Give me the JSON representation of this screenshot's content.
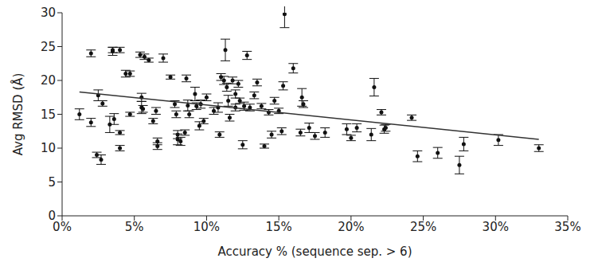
{
  "chart_data": {
    "type": "scatter",
    "x_label": "Accuracy % (sequence sep. > 6)",
    "y_label": "Avg RMSD (Å)",
    "color": "#111111",
    "marker": "circle",
    "x": [
      1.2,
      2.0,
      2.0,
      2.4,
      2.5,
      2.7,
      2.8,
      3.3,
      3.5,
      3.5,
      3.6,
      4.0,
      4.0,
      4.0,
      4.4,
      4.7,
      4.7,
      5.4,
      5.5,
      5.5,
      5.6,
      5.7,
      6.0,
      6.3,
      6.5,
      6.6,
      6.6,
      7.0,
      7.5,
      7.8,
      7.9,
      8.0,
      8.0,
      8.2,
      8.5,
      8.6,
      8.7,
      8.8,
      9.2,
      9.3,
      9.5,
      9.6,
      9.8,
      10.0,
      10.5,
      10.8,
      10.9,
      11.0,
      11.2,
      11.3,
      11.4,
      11.5,
      11.6,
      11.8,
      12.0,
      12.0,
      12.2,
      12.3,
      12.5,
      12.6,
      12.8,
      13.0,
      13.3,
      13.5,
      13.8,
      14.0,
      14.3,
      14.5,
      14.7,
      15.0,
      15.2,
      15.3,
      15.4,
      16.0,
      16.5,
      16.6,
      16.7,
      17.1,
      17.5,
      18.2,
      19.7,
      20.0,
      20.4,
      21.4,
      21.6,
      22.1,
      22.3,
      22.4,
      24.2,
      24.6,
      26.0,
      27.5,
      27.8,
      30.2,
      33.0
    ],
    "values": [
      15.0,
      24.0,
      13.8,
      9.0,
      17.8,
      8.3,
      16.6,
      13.5,
      24.3,
      24.5,
      14.3,
      24.5,
      12.3,
      10.0,
      21.0,
      21.0,
      15.0,
      23.8,
      17.5,
      16.0,
      15.8,
      23.5,
      23.0,
      14.0,
      15.5,
      11.0,
      10.3,
      23.3,
      20.5,
      16.5,
      15.0,
      12.0,
      11.3,
      11.0,
      12.3,
      20.3,
      16.3,
      15.0,
      18.0,
      16.2,
      13.3,
      16.5,
      14.0,
      17.5,
      15.5,
      16.0,
      12.0,
      20.5,
      20.0,
      24.5,
      19.0,
      17.0,
      14.5,
      20.0,
      16.0,
      18.0,
      19.5,
      17.0,
      10.5,
      16.2,
      23.7,
      16.0,
      17.8,
      19.7,
      16.2,
      10.3,
      15.3,
      12.0,
      17.0,
      15.5,
      12.5,
      19.2,
      29.8,
      21.8,
      12.3,
      17.5,
      16.5,
      13.0,
      11.8,
      12.3,
      12.8,
      11.5,
      13.0,
      12.0,
      19.0,
      15.3,
      12.8,
      13.0,
      14.5,
      8.8,
      9.3,
      7.5,
      10.6,
      11.2,
      10.0
    ],
    "error": [
      0.8,
      0.5,
      0.6,
      0.4,
      0.8,
      0.7,
      0.4,
      1.2,
      0.6,
      0.4,
      0.8,
      0.4,
      0.3,
      0.4,
      0.5,
      0.4,
      0.3,
      0.4,
      0.6,
      0.9,
      0.5,
      0.4,
      0.3,
      0.4,
      0.5,
      0.5,
      0.5,
      0.6,
      0.3,
      0.5,
      0.5,
      0.6,
      0.8,
      0.6,
      0.4,
      0.5,
      0.8,
      0.5,
      1.0,
      0.5,
      0.6,
      0.6,
      0.4,
      0.5,
      0.5,
      0.7,
      0.4,
      0.5,
      0.6,
      1.6,
      0.6,
      0.8,
      0.5,
      0.5,
      0.5,
      0.6,
      0.5,
      0.4,
      0.6,
      0.6,
      0.6,
      0.5,
      0.5,
      0.5,
      0.4,
      0.3,
      0.4,
      0.5,
      0.5,
      0.4,
      0.5,
      0.6,
      2.0,
      0.7,
      0.5,
      1.3,
      0.5,
      0.7,
      0.5,
      0.7,
      0.8,
      0.4,
      0.6,
      0.9,
      1.3,
      0.4,
      0.6,
      0.5,
      0.4,
      0.8,
      0.8,
      1.3,
      1.0,
      0.8,
      0.5
    ],
    "trend_line": {
      "x": [
        1.2,
        33.0
      ],
      "y": [
        18.3,
        11.3
      ]
    },
    "xlim": [
      0,
      35
    ],
    "xticks": [
      {
        "value": 0,
        "label": "0%"
      },
      {
        "value": 5,
        "label": "5%"
      },
      {
        "value": 10,
        "label": "10%"
      },
      {
        "value": 15,
        "label": "15%"
      },
      {
        "value": 20,
        "label": "20%"
      },
      {
        "value": 25,
        "label": "25%"
      },
      {
        "value": 30,
        "label": "30%"
      },
      {
        "value": 35,
        "label": "35%"
      }
    ],
    "ylim": [
      0,
      30
    ],
    "yticks": [
      0,
      5,
      10,
      15,
      20,
      25,
      30
    ],
    "grid": false
  }
}
